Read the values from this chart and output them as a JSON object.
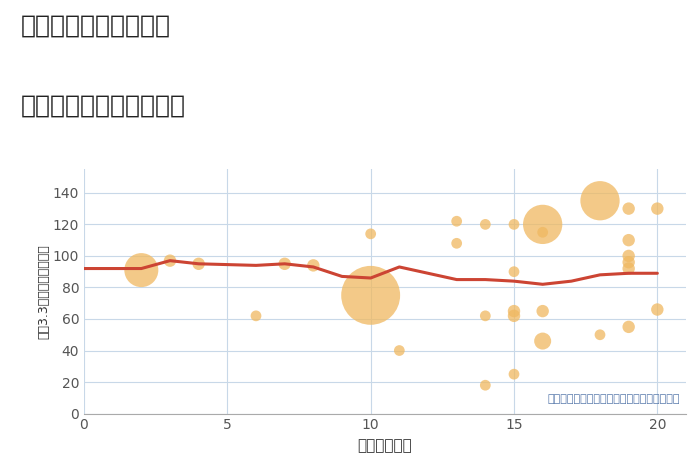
{
  "title_line1": "千葉県成田市東ノ台の",
  "title_line2": "駅距離別中古戸建て価格",
  "xlabel": "駅距離（分）",
  "ylabel": "坪（3.3㎡）単価（万円）",
  "annotation": "円の大きさは、取引のあった物件面積を示す",
  "xlim": [
    0,
    21
  ],
  "ylim": [
    0,
    155
  ],
  "xticks": [
    0,
    5,
    10,
    15,
    20
  ],
  "yticks": [
    0,
    20,
    40,
    60,
    80,
    100,
    120,
    140
  ],
  "bubble_color": "#F0B860",
  "bubble_alpha": 0.75,
  "line_color": "#cc4433",
  "line_width": 2.2,
  "grid_color": "#c8d8e8",
  "scatter_x": [
    2,
    3,
    4,
    6,
    7,
    8,
    10,
    10,
    11,
    13,
    13,
    14,
    14,
    14,
    15,
    15,
    15,
    15,
    15,
    16,
    16,
    16,
    16,
    18,
    18,
    19,
    19,
    19,
    19,
    19,
    19,
    20,
    20
  ],
  "scatter_y": [
    91,
    97,
    95,
    62,
    95,
    94,
    114,
    75,
    40,
    122,
    108,
    120,
    62,
    18,
    90,
    120,
    65,
    62,
    25,
    120,
    115,
    65,
    46,
    135,
    50,
    130,
    110,
    100,
    96,
    55,
    92,
    130,
    66
  ],
  "scatter_size": [
    600,
    80,
    80,
    60,
    80,
    80,
    60,
    1800,
    60,
    60,
    60,
    60,
    60,
    60,
    60,
    60,
    80,
    80,
    60,
    800,
    60,
    80,
    150,
    800,
    60,
    80,
    80,
    80,
    80,
    80,
    80,
    80,
    80
  ],
  "line_x": [
    0,
    2,
    3,
    4,
    6,
    7,
    8,
    9,
    10,
    11,
    13,
    14,
    15,
    16,
    17,
    18,
    19,
    20
  ],
  "line_y": [
    92,
    92,
    97,
    95,
    94,
    95,
    93,
    87,
    86,
    93,
    85,
    85,
    84,
    82,
    84,
    88,
    89,
    89
  ]
}
